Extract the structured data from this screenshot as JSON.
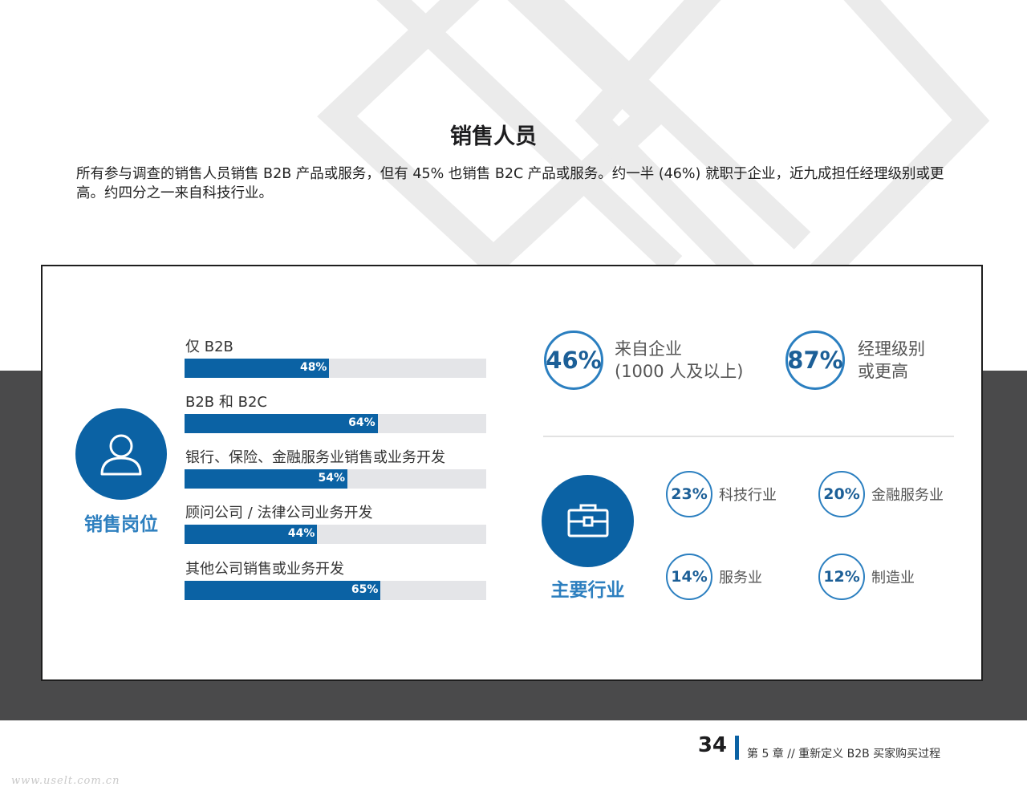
{
  "title": "销售人员",
  "intro": "所有参与调查的销售人员销售 B2B 产品或服务，但有 45% 也销售 B2C 产品或服务。约一半 (46%) 就职于企业，近九成担任经理级别或更高。约四分之一来自科技行业。",
  "sales_roles": {
    "title": "销售岗位",
    "icon": "person-icon",
    "bars": [
      {
        "label": "仅 B2B",
        "value": 48,
        "value_label": "48%"
      },
      {
        "label": "B2B 和 B2C",
        "value": 64,
        "value_label": "64%"
      },
      {
        "label": "银行、保险、金融服务业销售或业务开发",
        "value": 54,
        "value_label": "54%"
      },
      {
        "label": "顾问公司 / 法律公司业务开发",
        "value": 44,
        "value_label": "44%"
      },
      {
        "label": "其他公司销售或业务开发",
        "value": 65,
        "value_label": "65%"
      }
    ]
  },
  "highlights": [
    {
      "value": "46%",
      "line1": "来自企业",
      "line2": "(1000 人及以上)"
    },
    {
      "value": "87%",
      "line1": "经理级别",
      "line2": "或更高"
    }
  ],
  "industries": {
    "title": "主要行业",
    "icon": "briefcase-icon",
    "items": [
      {
        "value": "23%",
        "label": "科技行业"
      },
      {
        "value": "20%",
        "label": "金融服务业"
      },
      {
        "value": "14%",
        "label": "服务业"
      },
      {
        "value": "12%",
        "label": "制造业"
      }
    ]
  },
  "footer": {
    "page_number": "34",
    "chapter": "第 5 章 // 重新定义 B2B 买家购买过程"
  },
  "watermark": "www.uselt.com.cn",
  "colors": {
    "accent": "#0b62a4",
    "ring": "#2b7fc0",
    "band": "#4a4a4b"
  }
}
